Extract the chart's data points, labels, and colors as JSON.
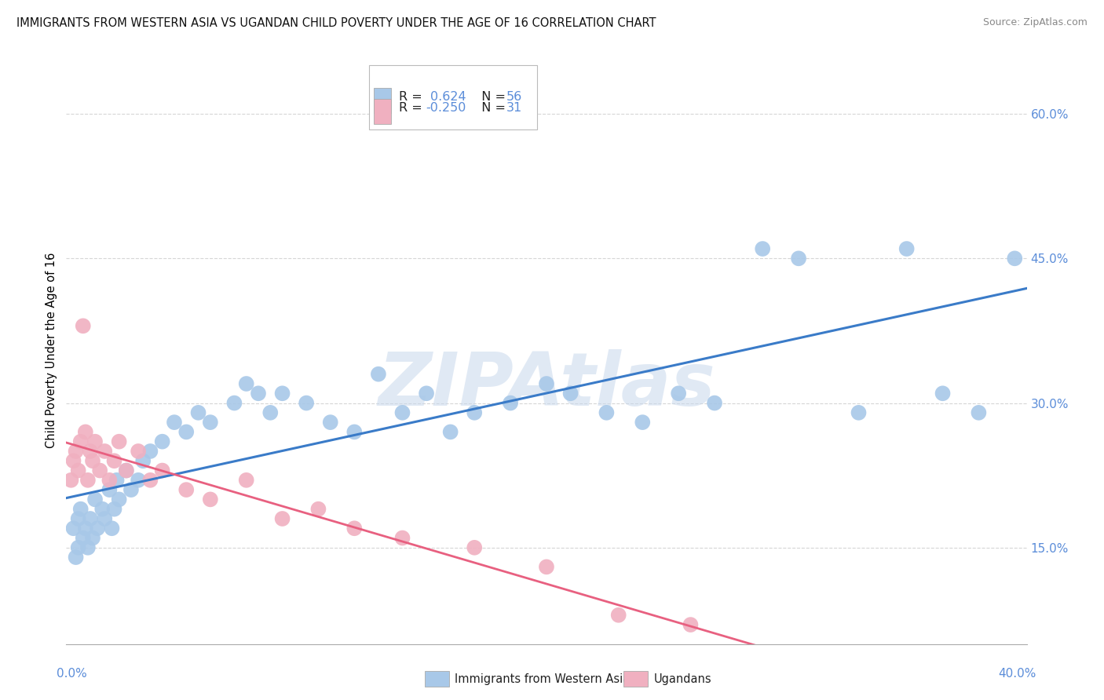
{
  "title": "IMMIGRANTS FROM WESTERN ASIA VS UGANDAN CHILD POVERTY UNDER THE AGE OF 16 CORRELATION CHART",
  "source": "Source: ZipAtlas.com",
  "xlim": [
    0.0,
    40.0
  ],
  "ylim": [
    5.0,
    65.0
  ],
  "y_ticks": [
    15.0,
    30.0,
    45.0,
    60.0
  ],
  "blue_color": "#A8C8E8",
  "blue_edge_color": "#A8C8E8",
  "pink_color": "#F0B0C0",
  "pink_edge_color": "#F0B0C0",
  "blue_line_color": "#3A7BC8",
  "pink_line_color": "#E86080",
  "tick_color": "#5B8DD9",
  "watermark": "ZIPAtlas",
  "watermark_color": "#C8D8EC",
  "grid_color": "#CCCCCC",
  "spine_color": "#AAAAAA",
  "blue_r": "0.624",
  "blue_n": "56",
  "pink_r": "-0.250",
  "pink_n": "31",
  "blue_x": [
    0.3,
    0.4,
    0.5,
    0.5,
    0.6,
    0.7,
    0.8,
    0.9,
    1.0,
    1.1,
    1.2,
    1.3,
    1.5,
    1.6,
    1.8,
    1.9,
    2.0,
    2.1,
    2.2,
    2.5,
    2.7,
    3.0,
    3.2,
    3.5,
    4.0,
    4.5,
    5.0,
    5.5,
    6.0,
    7.0,
    7.5,
    8.0,
    8.5,
    9.0,
    10.0,
    11.0,
    12.0,
    13.0,
    14.0,
    15.0,
    16.0,
    17.0,
    18.5,
    20.0,
    21.0,
    22.5,
    24.0,
    25.5,
    27.0,
    29.0,
    30.5,
    33.0,
    35.0,
    36.5,
    38.0,
    39.5
  ],
  "blue_y": [
    17.0,
    14.0,
    15.0,
    18.0,
    19.0,
    16.0,
    17.0,
    15.0,
    18.0,
    16.0,
    20.0,
    17.0,
    19.0,
    18.0,
    21.0,
    17.0,
    19.0,
    22.0,
    20.0,
    23.0,
    21.0,
    22.0,
    24.0,
    25.0,
    26.0,
    28.0,
    27.0,
    29.0,
    28.0,
    30.0,
    32.0,
    31.0,
    29.0,
    31.0,
    30.0,
    28.0,
    27.0,
    33.0,
    29.0,
    31.0,
    27.0,
    29.0,
    30.0,
    32.0,
    31.0,
    29.0,
    28.0,
    31.0,
    30.0,
    46.0,
    45.0,
    29.0,
    46.0,
    31.0,
    29.0,
    45.0
  ],
  "pink_x": [
    0.2,
    0.3,
    0.4,
    0.5,
    0.6,
    0.7,
    0.8,
    0.9,
    1.0,
    1.1,
    1.2,
    1.4,
    1.6,
    1.8,
    2.0,
    2.2,
    2.5,
    3.0,
    3.5,
    4.0,
    5.0,
    6.0,
    7.5,
    9.0,
    10.5,
    12.0,
    14.0,
    17.0,
    20.0,
    23.0,
    26.0
  ],
  "pink_y": [
    22.0,
    24.0,
    25.0,
    23.0,
    26.0,
    38.0,
    27.0,
    22.0,
    25.0,
    24.0,
    26.0,
    23.0,
    25.0,
    22.0,
    24.0,
    26.0,
    23.0,
    25.0,
    22.0,
    23.0,
    21.0,
    20.0,
    22.0,
    18.0,
    19.0,
    17.0,
    16.0,
    15.0,
    13.0,
    8.0,
    7.0
  ]
}
